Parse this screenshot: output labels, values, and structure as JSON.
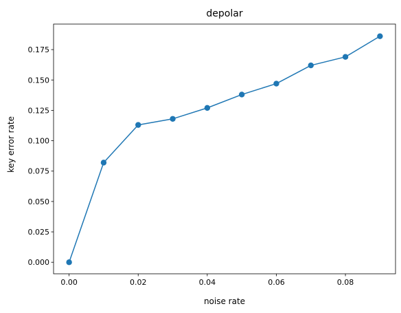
{
  "chart_data": {
    "type": "line",
    "title": "depolar",
    "xlabel": "noise rate",
    "ylabel": "key error rate",
    "xlim": [
      -0.0045,
      0.0945
    ],
    "ylim": [
      -0.0095,
      0.196
    ],
    "x_ticks": [
      0.0,
      0.02,
      0.04,
      0.06,
      0.08
    ],
    "x_tick_labels": [
      "0.00",
      "0.02",
      "0.04",
      "0.06",
      "0.08"
    ],
    "y_ticks": [
      0.0,
      0.025,
      0.05,
      0.075,
      0.1,
      0.125,
      0.15,
      0.175
    ],
    "y_tick_labels": [
      "0.000",
      "0.025",
      "0.050",
      "0.075",
      "0.100",
      "0.125",
      "0.150",
      "0.175"
    ],
    "grid": false,
    "legend": "none",
    "series": [
      {
        "color": "#1f77b4",
        "marker": "circle",
        "x": [
          0.0,
          0.01,
          0.02,
          0.03,
          0.04,
          0.05,
          0.06,
          0.07,
          0.08,
          0.09
        ],
        "y": [
          0.0,
          0.082,
          0.113,
          0.118,
          0.127,
          0.138,
          0.147,
          0.162,
          0.169,
          0.186
        ]
      }
    ]
  }
}
